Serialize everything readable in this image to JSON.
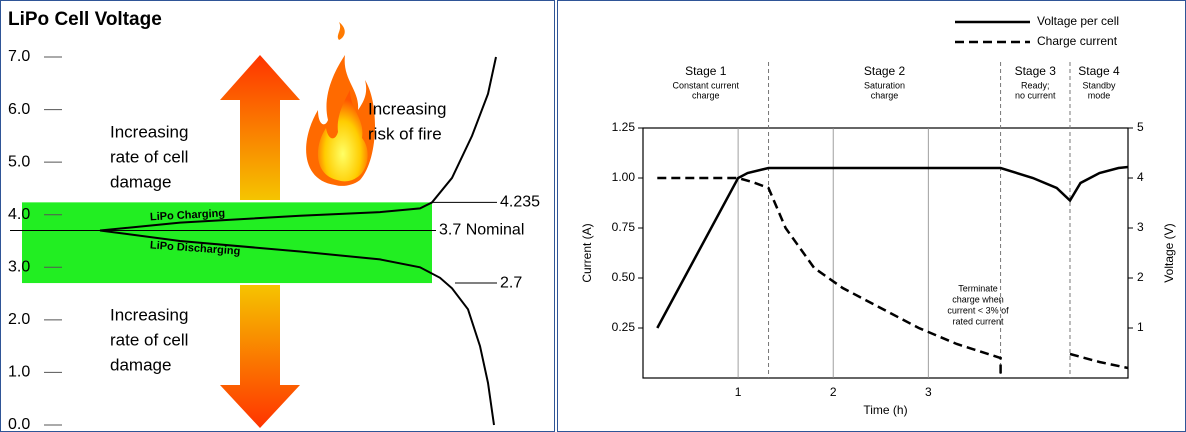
{
  "chart_data": [
    {
      "type": "line",
      "title": "LiPo Cell Voltage",
      "ylim": [
        0,
        7
      ],
      "yticks": [
        {
          "value": 0,
          "label": "0.0"
        },
        {
          "value": 1,
          "label": "1.0"
        },
        {
          "value": 2,
          "label": "2.0"
        },
        {
          "value": 3,
          "label": "3.0"
        },
        {
          "value": 4,
          "label": "4.0"
        },
        {
          "value": 5,
          "label": "5.0"
        },
        {
          "value": 6,
          "label": "6.0"
        },
        {
          "value": 7,
          "label": "7.0"
        }
      ],
      "xlim": [
        0,
        10
      ],
      "series": [
        {
          "name": "LiPo Charging",
          "color": "#000000",
          "x": [
            0,
            2,
            5,
            7,
            8,
            8.3,
            8.8,
            9.3,
            9.7,
            9.9
          ],
          "values": [
            3.7,
            3.85,
            3.98,
            4.05,
            4.12,
            4.235,
            4.7,
            5.5,
            6.3,
            7.0
          ]
        },
        {
          "name": "LiPo Discharging",
          "color": "#000000",
          "x": [
            0,
            2,
            5,
            7,
            8,
            8.5,
            8.8,
            9.2,
            9.5,
            9.7,
            9.85
          ],
          "values": [
            3.7,
            3.5,
            3.3,
            3.15,
            3.0,
            2.8,
            2.6,
            2.2,
            1.5,
            0.8,
            0
          ]
        }
      ],
      "band": {
        "color": "#22ee22"
      },
      "reference_lines": [
        {
          "value": 4.235,
          "label": "4.235"
        },
        {
          "value": 3.7,
          "label": "3.7 Nominal"
        },
        {
          "value": 2.7,
          "label": "2.7"
        }
      ],
      "annotations": [
        {
          "lines": [
            "Increasing",
            "rate of cell",
            "damage"
          ]
        },
        {
          "lines": [
            "Increasing",
            "risk of fire"
          ]
        },
        {
          "lines": [
            "Increasing",
            "rate of cell",
            "damage"
          ]
        }
      ]
    },
    {
      "type": "line",
      "xlabel": "Time (h)",
      "ylabel": "Current (A)",
      "y2label": "Voltage (V)",
      "xlim": [
        0,
        5.1
      ],
      "xticks": [
        1,
        2,
        3
      ],
      "ylim": [
        0,
        1.25
      ],
      "yticks": [
        {
          "value": 0.25,
          "label": "0.25"
        },
        {
          "value": 0.5,
          "label": "0.50"
        },
        {
          "value": 0.75,
          "label": "0.75"
        },
        {
          "value": 1,
          "label": "1.00"
        },
        {
          "value": 1.25,
          "label": "1.25"
        }
      ],
      "y2lim": [
        0,
        5
      ],
      "y2ticks": [
        1,
        2,
        3,
        4,
        5
      ],
      "grid": true,
      "legend": "upper right",
      "series": [
        {
          "name": "Voltage per cell",
          "color": "#000000",
          "style": "solid",
          "axis": "y2",
          "x": [
            0.15,
            1.0,
            1.1,
            1.32,
            3.76,
            4.1,
            4.35,
            4.49,
            4.6,
            4.8,
            5.0,
            5.1
          ],
          "values": [
            1.0,
            4.0,
            4.1,
            4.2,
            4.2,
            4.0,
            3.8,
            3.55,
            3.9,
            4.1,
            4.2,
            4.22
          ]
        },
        {
          "name": "Charge current",
          "color": "#000000",
          "style": "dashed",
          "x": [
            0.15,
            1.0,
            1.15,
            1.32,
            1.5,
            1.8,
            2.1,
            2.5,
            2.9,
            3.3,
            3.76,
            3.76,
            null,
            4.49,
            4.8,
            5.1
          ],
          "values": [
            1.0,
            1.0,
            0.98,
            0.95,
            0.75,
            0.55,
            0.45,
            0.35,
            0.25,
            0.17,
            0.1,
            0,
            null,
            0.12,
            0.08,
            0.05
          ]
        }
      ],
      "stages": [
        {
          "title": "Stage 1",
          "description": [
            "Constant current",
            "charge"
          ]
        },
        {
          "title": "Stage 2",
          "description": [
            "Saturation",
            "charge"
          ]
        },
        {
          "title": "Stage 3",
          "description": [
            "Ready;",
            "no current"
          ]
        },
        {
          "title": "Stage 4",
          "description": [
            "Standby",
            "mode"
          ]
        }
      ],
      "stage_bounds": [
        1.32,
        3.76,
        4.49
      ],
      "annotations": [
        {
          "lines": [
            "Terminate",
            "charge when",
            "current < 3% of",
            "rated current"
          ]
        }
      ]
    }
  ]
}
